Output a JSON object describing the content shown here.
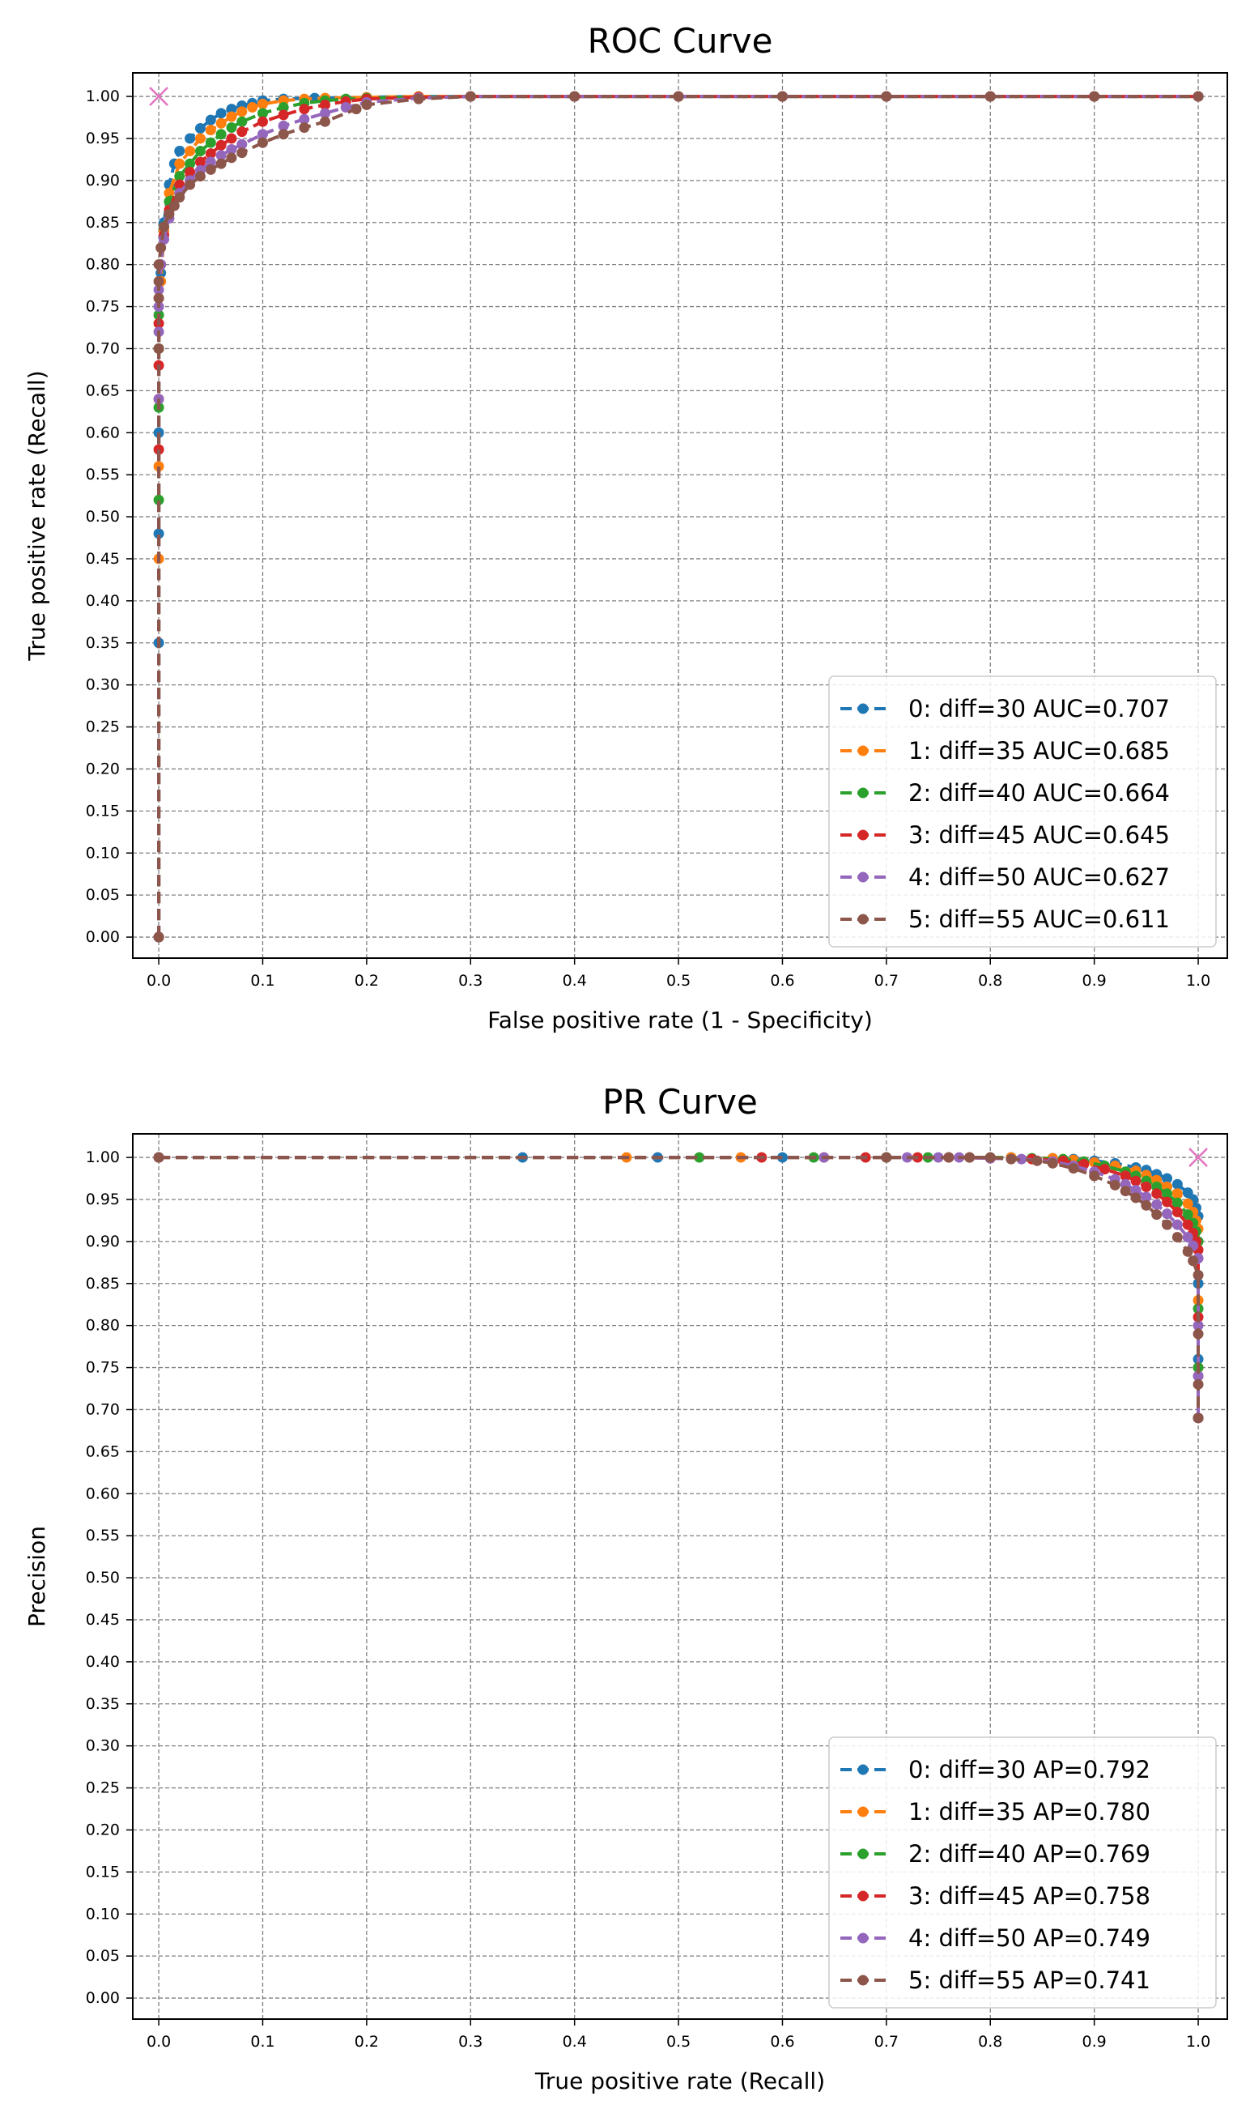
{
  "chart_data": [
    {
      "type": "line",
      "title": "ROC Curve",
      "xlabel": "False positive rate (1 - Specificity)",
      "ylabel": "True positive rate (Recall)",
      "xlim": [
        -0.025,
        1.028
      ],
      "ylim": [
        -0.025,
        1.028
      ],
      "xticks": [
        "0.0",
        "0.1",
        "0.2",
        "0.3",
        "0.4",
        "0.5",
        "0.6",
        "0.7",
        "0.8",
        "0.9",
        "1.0"
      ],
      "yticks": [
        "0.00",
        "0.05",
        "0.10",
        "0.15",
        "0.20",
        "0.25",
        "0.30",
        "0.35",
        "0.40",
        "0.45",
        "0.50",
        "0.55",
        "0.60",
        "0.65",
        "0.70",
        "0.75",
        "0.80",
        "0.85",
        "0.90",
        "0.95",
        "1.00"
      ],
      "grid": true,
      "legend_position": "lower right",
      "marker": {
        "x": 0.0,
        "y": 1.0,
        "symbol": "x",
        "color": "#e377c2"
      },
      "series": [
        {
          "name": "0: diff=30 AUC=0.707",
          "color": "#1f77b4",
          "x": [
            0,
            0,
            0,
            0,
            0,
            0.002,
            0.005,
            0.01,
            0.015,
            0.02,
            0.03,
            0.04,
            0.05,
            0.06,
            0.07,
            0.08,
            0.09,
            0.1,
            0.12,
            0.15,
            0.2,
            0.25,
            0.3,
            0.4,
            0.5,
            0.6,
            0.7,
            0.8,
            0.9,
            1.0
          ],
          "y": [
            0,
            0.35,
            0.48,
            0.6,
            0.7,
            0.79,
            0.85,
            0.895,
            0.92,
            0.935,
            0.95,
            0.962,
            0.972,
            0.98,
            0.985,
            0.989,
            0.992,
            0.995,
            0.997,
            0.998,
            0.999,
            1,
            1,
            1,
            1,
            1,
            1,
            1,
            1,
            1
          ]
        },
        {
          "name": "1: diff=35 AUC=0.685",
          "color": "#ff7f0e",
          "x": [
            0,
            0,
            0,
            0,
            0,
            0.002,
            0.005,
            0.01,
            0.02,
            0.03,
            0.04,
            0.05,
            0.06,
            0.07,
            0.08,
            0.09,
            0.1,
            0.12,
            0.14,
            0.16,
            0.2,
            0.25,
            0.3,
            0.4,
            0.5,
            0.6,
            0.7,
            0.8,
            0.9,
            1.0
          ],
          "y": [
            0,
            0.45,
            0.56,
            0.64,
            0.7,
            0.78,
            0.84,
            0.885,
            0.92,
            0.935,
            0.95,
            0.96,
            0.968,
            0.976,
            0.982,
            0.987,
            0.991,
            0.995,
            0.997,
            0.998,
            0.999,
            1,
            1,
            1,
            1,
            1,
            1,
            1,
            1,
            1
          ]
        },
        {
          "name": "2: diff=40 AUC=0.664",
          "color": "#2ca02c",
          "x": [
            0,
            0,
            0,
            0,
            0,
            0.002,
            0.005,
            0.01,
            0.02,
            0.03,
            0.04,
            0.05,
            0.06,
            0.07,
            0.08,
            0.1,
            0.12,
            0.14,
            0.16,
            0.18,
            0.2,
            0.25,
            0.3,
            0.4,
            0.5,
            0.6,
            0.7,
            0.8,
            0.9,
            1.0
          ],
          "y": [
            0,
            0.52,
            0.63,
            0.7,
            0.74,
            0.8,
            0.845,
            0.875,
            0.905,
            0.92,
            0.935,
            0.945,
            0.955,
            0.963,
            0.97,
            0.98,
            0.987,
            0.992,
            0.995,
            0.997,
            0.998,
            0.999,
            1,
            1,
            1,
            1,
            1,
            1,
            1,
            1
          ]
        },
        {
          "name": "3: diff=45 AUC=0.645",
          "color": "#d62728",
          "x": [
            0,
            0,
            0,
            0,
            0,
            0.002,
            0.005,
            0.01,
            0.02,
            0.03,
            0.04,
            0.05,
            0.06,
            0.07,
            0.08,
            0.1,
            0.12,
            0.14,
            0.16,
            0.18,
            0.2,
            0.25,
            0.3,
            0.4,
            0.5,
            0.6,
            0.7,
            0.8,
            0.9,
            1.0
          ],
          "y": [
            0,
            0.58,
            0.68,
            0.73,
            0.76,
            0.8,
            0.835,
            0.865,
            0.895,
            0.91,
            0.922,
            0.932,
            0.942,
            0.95,
            0.958,
            0.97,
            0.978,
            0.985,
            0.99,
            0.994,
            0.997,
            0.999,
            1,
            1,
            1,
            1,
            1,
            1,
            1,
            1
          ]
        },
        {
          "name": "4: diff=50 AUC=0.627",
          "color": "#9467bd",
          "x": [
            0,
            0,
            0,
            0,
            0,
            0.002,
            0.005,
            0.01,
            0.02,
            0.03,
            0.04,
            0.05,
            0.06,
            0.07,
            0.08,
            0.1,
            0.12,
            0.14,
            0.16,
            0.18,
            0.2,
            0.25,
            0.3,
            0.4,
            0.5,
            0.6,
            0.7,
            0.8,
            0.9,
            1.0
          ],
          "y": [
            0,
            0.64,
            0.72,
            0.75,
            0.77,
            0.8,
            0.83,
            0.855,
            0.885,
            0.9,
            0.912,
            0.922,
            0.93,
            0.937,
            0.943,
            0.955,
            0.965,
            0.973,
            0.98,
            0.987,
            0.993,
            0.998,
            1,
            1,
            1,
            1,
            1,
            1,
            1,
            1
          ]
        },
        {
          "name": "5: diff=55 AUC=0.611",
          "color": "#8c564b",
          "x": [
            0,
            0,
            0,
            0,
            0,
            0.002,
            0.005,
            0.01,
            0.015,
            0.02,
            0.03,
            0.04,
            0.05,
            0.06,
            0.07,
            0.08,
            0.1,
            0.12,
            0.14,
            0.16,
            0.19,
            0.2,
            0.25,
            0.3,
            0.4,
            0.5,
            0.6,
            0.7,
            0.8,
            0.9,
            1.0
          ],
          "y": [
            0,
            0.7,
            0.76,
            0.78,
            0.8,
            0.82,
            0.845,
            0.86,
            0.87,
            0.88,
            0.895,
            0.905,
            0.913,
            0.92,
            0.927,
            0.933,
            0.945,
            0.955,
            0.963,
            0.97,
            0.985,
            0.99,
            0.997,
            1,
            1,
            1,
            1,
            1,
            1,
            1,
            1
          ]
        }
      ]
    },
    {
      "type": "line",
      "title": "PR Curve",
      "xlabel": "True positive rate (Recall)",
      "ylabel": "Precision",
      "xlim": [
        -0.025,
        1.028
      ],
      "ylim": [
        -0.025,
        1.028
      ],
      "xticks": [
        "0.0",
        "0.1",
        "0.2",
        "0.3",
        "0.4",
        "0.5",
        "0.6",
        "0.7",
        "0.8",
        "0.9",
        "1.0"
      ],
      "yticks": [
        "0.00",
        "0.05",
        "0.10",
        "0.15",
        "0.20",
        "0.25",
        "0.30",
        "0.35",
        "0.40",
        "0.45",
        "0.50",
        "0.55",
        "0.60",
        "0.65",
        "0.70",
        "0.75",
        "0.80",
        "0.85",
        "0.90",
        "0.95",
        "1.00"
      ],
      "grid": true,
      "legend_position": "lower right",
      "marker": {
        "x": 1.0,
        "y": 1.0,
        "symbol": "x",
        "color": "#e377c2"
      },
      "series": [
        {
          "name": "0: diff=30 AP=0.792",
          "color": "#1f77b4",
          "x": [
            0,
            0.35,
            0.48,
            0.6,
            0.7,
            0.78,
            0.82,
            0.86,
            0.88,
            0.9,
            0.92,
            0.94,
            0.95,
            0.96,
            0.97,
            0.98,
            0.99,
            0.995,
            0.998,
            1.0,
            1.0,
            1.0,
            1.0
          ],
          "y": [
            1,
            1,
            1,
            1,
            1,
            1,
            1,
            0.999,
            0.998,
            0.996,
            0.993,
            0.988,
            0.985,
            0.98,
            0.975,
            0.968,
            0.958,
            0.95,
            0.94,
            0.93,
            0.85,
            0.76,
            0.69
          ]
        },
        {
          "name": "1: diff=35 AP=0.780",
          "color": "#ff7f0e",
          "x": [
            0,
            0.45,
            0.56,
            0.64,
            0.7,
            0.78,
            0.82,
            0.86,
            0.88,
            0.9,
            0.92,
            0.94,
            0.95,
            0.96,
            0.97,
            0.98,
            0.99,
            0.995,
            0.998,
            1.0,
            1.0,
            1.0,
            1.0
          ],
          "y": [
            1,
            1,
            1,
            1,
            1,
            1,
            1,
            0.999,
            0.997,
            0.994,
            0.99,
            0.984,
            0.979,
            0.973,
            0.965,
            0.957,
            0.945,
            0.935,
            0.925,
            0.915,
            0.83,
            0.75,
            0.69
          ]
        },
        {
          "name": "2: diff=40 AP=0.769",
          "color": "#2ca02c",
          "x": [
            0,
            0.52,
            0.63,
            0.7,
            0.74,
            0.8,
            0.84,
            0.87,
            0.89,
            0.91,
            0.93,
            0.94,
            0.95,
            0.96,
            0.97,
            0.98,
            0.99,
            0.995,
            0.998,
            1.0,
            1.0,
            1.0,
            1.0
          ],
          "y": [
            1,
            1,
            1,
            1,
            1,
            1,
            0.999,
            0.998,
            0.995,
            0.99,
            0.983,
            0.978,
            0.972,
            0.965,
            0.957,
            0.946,
            0.932,
            0.922,
            0.912,
            0.9,
            0.82,
            0.75,
            0.69
          ]
        },
        {
          "name": "3: diff=45 AP=0.758",
          "color": "#d62728",
          "x": [
            0,
            0.58,
            0.68,
            0.73,
            0.76,
            0.8,
            0.84,
            0.87,
            0.89,
            0.91,
            0.93,
            0.94,
            0.95,
            0.96,
            0.97,
            0.98,
            0.99,
            0.995,
            0.998,
            1.0,
            1.0,
            1.0,
            1.0
          ],
          "y": [
            1,
            1,
            1,
            1,
            1,
            0.999,
            0.998,
            0.996,
            0.992,
            0.986,
            0.978,
            0.972,
            0.965,
            0.957,
            0.947,
            0.935,
            0.92,
            0.91,
            0.9,
            0.89,
            0.81,
            0.74,
            0.69
          ]
        },
        {
          "name": "4: diff=50 AP=0.749",
          "color": "#9467bd",
          "x": [
            0,
            0.64,
            0.72,
            0.75,
            0.77,
            0.8,
            0.83,
            0.86,
            0.88,
            0.9,
            0.92,
            0.93,
            0.94,
            0.95,
            0.96,
            0.97,
            0.98,
            0.99,
            0.995,
            1.0,
            1.0,
            1.0,
            1.0
          ],
          "y": [
            1,
            1,
            1,
            1,
            1,
            0.999,
            0.998,
            0.995,
            0.99,
            0.983,
            0.974,
            0.968,
            0.961,
            0.953,
            0.944,
            0.933,
            0.92,
            0.905,
            0.895,
            0.88,
            0.8,
            0.74,
            0.69
          ]
        },
        {
          "name": "5: diff=55 AP=0.741",
          "color": "#8c564b",
          "x": [
            0,
            0.7,
            0.76,
            0.78,
            0.8,
            0.82,
            0.845,
            0.86,
            0.88,
            0.9,
            0.92,
            0.93,
            0.94,
            0.95,
            0.96,
            0.97,
            0.98,
            0.99,
            0.995,
            1.0,
            1.0,
            1.0,
            1.0
          ],
          "y": [
            1,
            1,
            1,
            1,
            1,
            0.998,
            0.996,
            0.993,
            0.987,
            0.978,
            0.967,
            0.96,
            0.952,
            0.943,
            0.932,
            0.92,
            0.905,
            0.888,
            0.877,
            0.86,
            0.79,
            0.73,
            0.69
          ]
        }
      ]
    }
  ]
}
